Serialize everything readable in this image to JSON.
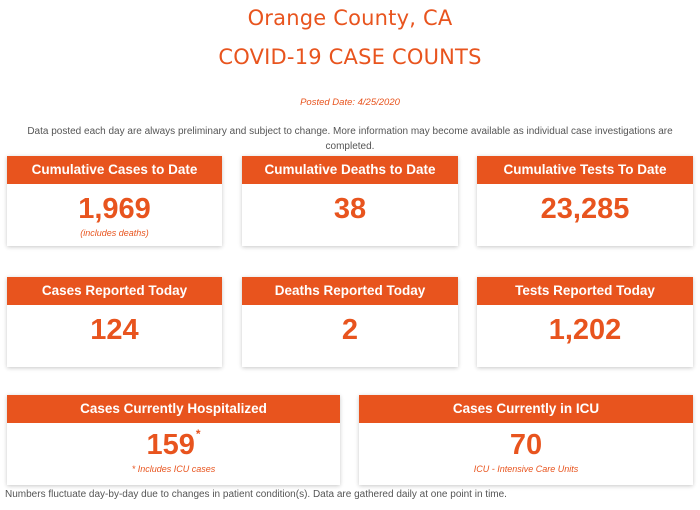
{
  "header": {
    "county": "Orange County, CA",
    "title": "COVID-19 CASE COUNTS",
    "posted": "Posted Date: 4/25/2020",
    "disclaimer": "Data posted each day are always preliminary and subject to change. More information may become available as individual case investigations are completed."
  },
  "row1": [
    {
      "label": "Cumulative Cases to Date",
      "value": "1,969",
      "note": "(includes deaths)"
    },
    {
      "label": "Cumulative Deaths to Date",
      "value": "38"
    },
    {
      "label": "Cumulative Tests To Date",
      "value": "23,285"
    }
  ],
  "row2": [
    {
      "label": "Cases Reported Today",
      "value": "124"
    },
    {
      "label": "Deaths Reported Today",
      "value": "2"
    },
    {
      "label": "Tests Reported Today",
      "value": "1,202"
    }
  ],
  "row3": [
    {
      "label": "Cases Currently Hospitalized",
      "value": "159",
      "marker": "*",
      "note_marker": "*",
      "note": "Includes ICU cases"
    },
    {
      "label": "Cases Currently in ICU",
      "value": "70",
      "note": "ICU - Intensive Care Units"
    }
  ],
  "footer": "Numbers fluctuate day-by-day due to changes in patient condition(s). Data are gathered daily at one point in time.",
  "colors": {
    "accent": "#e8541e",
    "text": "#555555"
  }
}
